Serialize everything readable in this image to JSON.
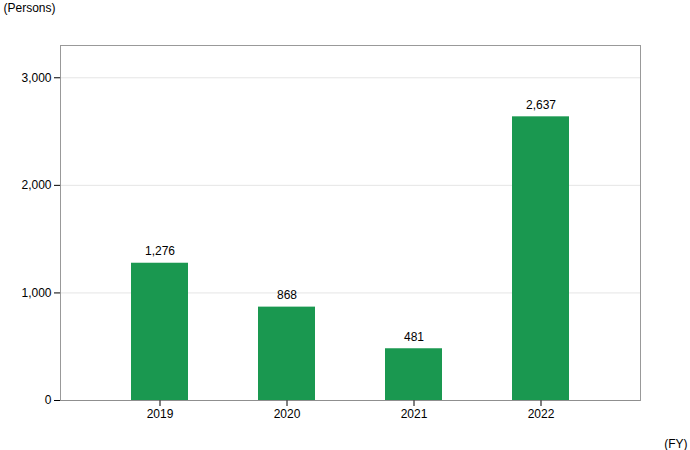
{
  "chart_data": {
    "type": "bar",
    "categories": [
      "2019",
      "2020",
      "2021",
      "2022"
    ],
    "values": [
      1276,
      868,
      481,
      2637
    ],
    "value_labels": [
      "1,276",
      "868",
      "481",
      "2,637"
    ],
    "data_labels": true,
    "color": "#1a9850",
    "ylabel": "(Persons)",
    "xlabel": "(FY)",
    "ylim": [
      0,
      3300
    ],
    "yticks": [
      0,
      {
        "value": 1000,
        "label": "1,000"
      },
      {
        "value": 2000,
        "label": "2,000"
      },
      {
        "value": 3000,
        "label": "3,000"
      }
    ],
    "grid": true
  }
}
